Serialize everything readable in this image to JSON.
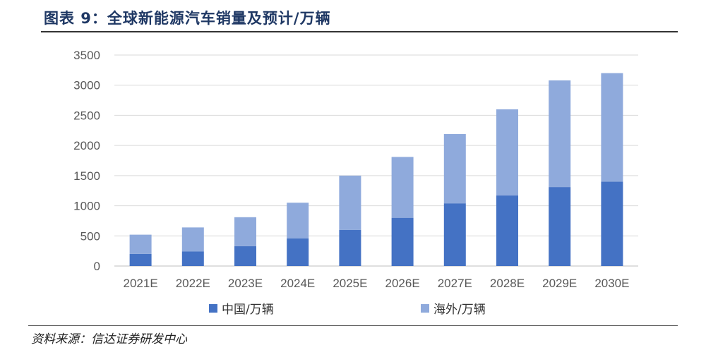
{
  "title": "图表 9：全球新能源汽车销量及预计/万辆",
  "source": "资料来源：信达证券研发中心",
  "colors": {
    "china": "#4472c4",
    "overseas": "#8faadc",
    "grid": "#d9d9d9",
    "axis_text": "#595959"
  },
  "chart_data": {
    "type": "bar",
    "stacked": true,
    "title": "",
    "xlabel": "",
    "ylabel": "",
    "categories": [
      "2021E",
      "2022E",
      "2023E",
      "2024E",
      "2025E",
      "2026E",
      "2027E",
      "2028E",
      "2029E",
      "2030E"
    ],
    "series": [
      {
        "name": "中国/万辆",
        "values": [
          200,
          240,
          330,
          460,
          600,
          800,
          1040,
          1170,
          1310,
          1400
        ]
      },
      {
        "name": "海外/万辆",
        "values": [
          320,
          400,
          480,
          590,
          900,
          1010,
          1150,
          1430,
          1770,
          1800
        ]
      }
    ],
    "ylim": [
      0,
      3500
    ],
    "yticks": [
      0,
      500,
      1000,
      1500,
      2000,
      2500,
      3000,
      3500
    ],
    "grid": true,
    "legend_position": "bottom"
  }
}
